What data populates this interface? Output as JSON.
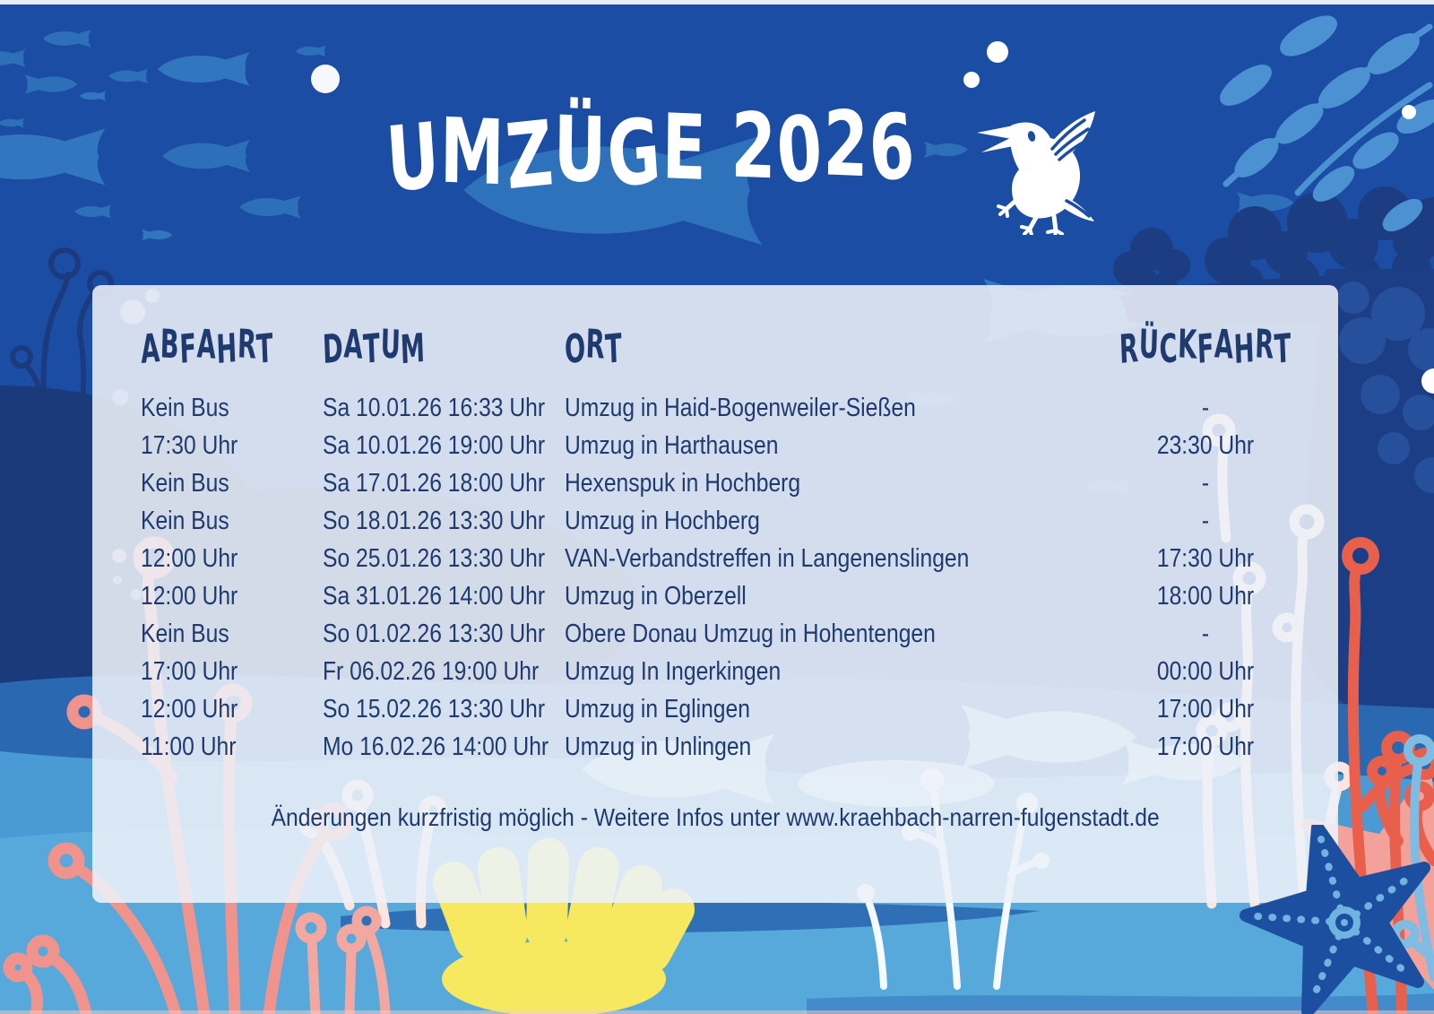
{
  "title": "UMZÜGE 2026",
  "logo": {
    "icon": "crow-icon"
  },
  "schedule": {
    "headers": {
      "abfahrt": "Abfahrt",
      "datum": "Datum",
      "ort": "Ort",
      "rueckfahrt": "Rückfahrt"
    },
    "rows": [
      {
        "abfahrt": "Kein Bus",
        "datum": "Sa 10.01.26 16:33 Uhr",
        "ort": "Umzug in Haid-Bogenweiler-Sießen",
        "rueckfahrt": "-"
      },
      {
        "abfahrt": "17:30 Uhr",
        "datum": "Sa 10.01.26 19:00 Uhr",
        "ort": "Umzug in Harthausen",
        "rueckfahrt": "23:30 Uhr"
      },
      {
        "abfahrt": "Kein Bus",
        "datum": "Sa 17.01.26 18:00 Uhr",
        "ort": "Hexenspuk in Hochberg",
        "rueckfahrt": "-"
      },
      {
        "abfahrt": "Kein Bus",
        "datum": "So 18.01.26 13:30 Uhr",
        "ort": "Umzug in Hochberg",
        "rueckfahrt": "-"
      },
      {
        "abfahrt": "12:00 Uhr",
        "datum": "So 25.01.26 13:30 Uhr",
        "ort": "VAN-Verbandstreffen in Langenenslingen",
        "rueckfahrt": "17:30 Uhr"
      },
      {
        "abfahrt": "12:00 Uhr",
        "datum": "Sa 31.01.26 14:00 Uhr",
        "ort": "Umzug in Oberzell",
        "rueckfahrt": "18:00 Uhr"
      },
      {
        "abfahrt": "Kein Bus",
        "datum": "So 01.02.26 13:30 Uhr",
        "ort": "Obere Donau Umzug in Hohentengen",
        "rueckfahrt": "-"
      },
      {
        "abfahrt": "17:00 Uhr",
        "datum": "Fr 06.02.26 19:00 Uhr",
        "ort": "Umzug In Ingerkingen",
        "rueckfahrt": "00:00 Uhr"
      },
      {
        "abfahrt": "12:00 Uhr",
        "datum": "So 15.02.26 13:30 Uhr",
        "ort": "Umzug in Eglingen",
        "rueckfahrt": "17:00 Uhr"
      },
      {
        "abfahrt": "11:00 Uhr",
        "datum": "Mo 16.02.26 14:00 Uhr",
        "ort": "Umzug in Unlingen",
        "rueckfahrt": "17:00 Uhr"
      }
    ]
  },
  "footer": "Änderungen kurzfristig möglich - Weitere Infos unter www.kraehbach-narren-fulgenstadt.de",
  "colors": {
    "background_top": "#1a4da3",
    "background_bottom": "#57a8db",
    "panel": "#edf1f8",
    "text_navy": "#1e3a6e",
    "fish_blue": "#2e6fb9",
    "coral_pink": "#f0938d",
    "coral_red": "#e8604c",
    "seaweed_yellow": "#f6e85f",
    "starfish_blue": "#1d4fa0",
    "starfish_pink": "#f2a19b"
  }
}
